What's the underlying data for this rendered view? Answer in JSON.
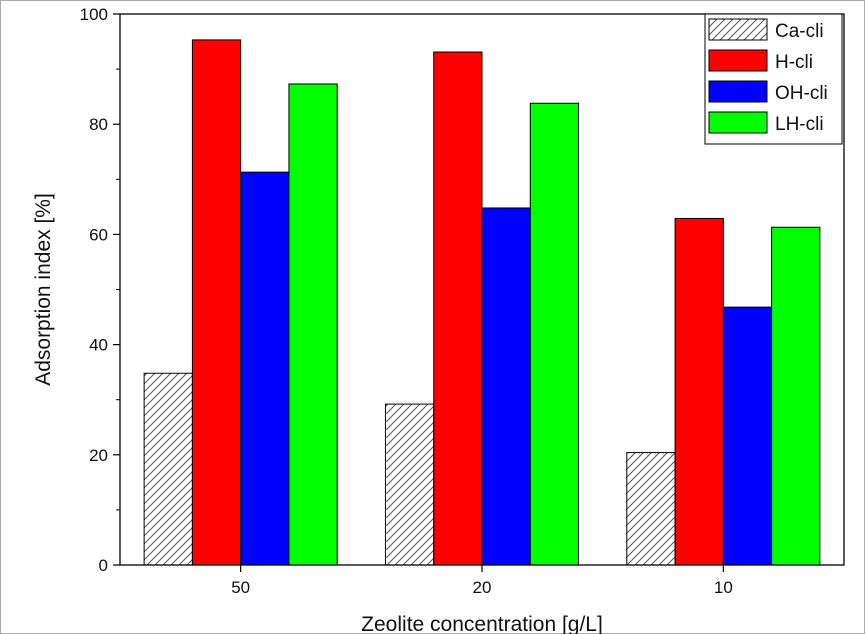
{
  "chart_data": {
    "type": "bar",
    "title": "",
    "xlabel": "Zeolite concentration [g/L]",
    "ylabel": "Adsorption index  [%]",
    "categories": [
      "50",
      "20",
      "10"
    ],
    "ylim": [
      0,
      100
    ],
    "yticks": [
      0,
      20,
      40,
      60,
      80,
      100
    ],
    "grid": false,
    "legend_position": "top-right",
    "series": [
      {
        "name": "Ca-cli",
        "values": [
          34.8,
          29.2,
          20.4
        ],
        "color": "#ffffff",
        "pattern": "diagonal-hatch"
      },
      {
        "name": "H-cli",
        "values": [
          95.3,
          93.1,
          62.9
        ],
        "color": "#ff0000"
      },
      {
        "name": "OH-cli",
        "values": [
          71.3,
          64.8,
          46.8
        ],
        "color": "#0000ff"
      },
      {
        "name": "LH-cli",
        "values": [
          87.3,
          83.8,
          61.3
        ],
        "color": "#00ff00"
      }
    ]
  }
}
